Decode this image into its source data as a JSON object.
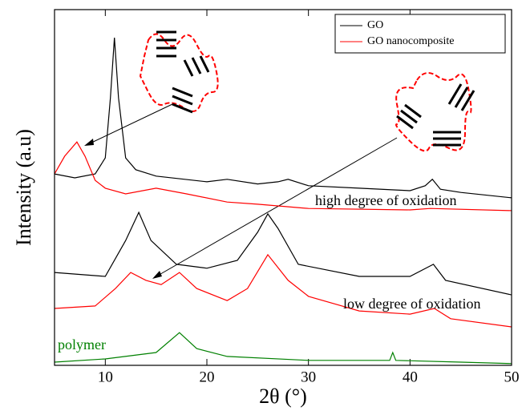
{
  "chart_data": {
    "type": "line",
    "x_label": "2θ (°)",
    "y_label": "Intensity (a.u)",
    "xlim": [
      5,
      50
    ],
    "ylim": [
      0,
      100
    ],
    "xticks": [
      10,
      20,
      30,
      40,
      50
    ],
    "legend_position": "upper right",
    "series": [
      {
        "name": "GO",
        "color": "#000000",
        "x": [
          5,
          7,
          9,
          10,
          10.5,
          10.9,
          11.3,
          12,
          13,
          15,
          20,
          22,
          25,
          27,
          28,
          30,
          35,
          40,
          41.5,
          42.2,
          43,
          45,
          50
        ],
        "values": [
          53.8,
          52.7,
          53.8,
          58.3,
          75.2,
          92.1,
          75.2,
          58.3,
          55.0,
          53.2,
          51.6,
          52.3,
          51.0,
          51.6,
          52.3,
          50.5,
          49.8,
          49.1,
          50.5,
          52.3,
          49.5,
          48.6,
          47.1
        ]
      },
      {
        "name": "GO nanocomposite",
        "color": "#ff0000",
        "x": [
          5,
          6,
          7.2,
          8,
          9,
          10,
          12,
          15,
          18,
          22,
          25,
          30,
          40,
          42,
          50
        ],
        "values": [
          53.8,
          58.8,
          62.8,
          58.8,
          52.0,
          49.8,
          48.2,
          49.8,
          48.2,
          45.9,
          45.3,
          44.1,
          43.7,
          44.1,
          43.5
        ]
      },
      {
        "color": "#000000",
        "x": [
          5,
          10,
          12,
          13.3,
          14.5,
          17,
          20,
          23,
          25,
          26,
          27,
          29,
          35,
          40,
          42.3,
          43.5,
          50
        ],
        "values": [
          26.1,
          25.0,
          35.1,
          43.0,
          35.1,
          28.4,
          27.3,
          29.5,
          37.4,
          42.6,
          38.5,
          28.4,
          25.0,
          25.0,
          28.4,
          23.9,
          19.8
        ]
      },
      {
        "color": "#ff0000",
        "x": [
          5,
          9,
          11,
          12.5,
          14,
          15.5,
          17.3,
          19,
          22,
          24,
          26,
          28,
          30,
          35,
          40,
          42.4,
          44,
          50
        ],
        "values": [
          16.0,
          16.7,
          21.6,
          26.1,
          23.9,
          22.7,
          26.1,
          21.6,
          18.2,
          21.6,
          31.1,
          23.9,
          19.4,
          15.3,
          14.4,
          16.0,
          13.1,
          10.8
        ]
      },
      {
        "color": "#008000",
        "x": [
          5,
          10,
          15,
          17.3,
          19,
          22,
          30,
          38,
          38.3,
          38.6,
          45,
          50
        ],
        "values": [
          0.9,
          1.8,
          3.6,
          9.2,
          4.7,
          2.5,
          1.4,
          1.4,
          3.6,
          1.4,
          0.9,
          0.5
        ]
      }
    ],
    "annotations": [
      {
        "text": "high degree of oxidation",
        "color": "#000000"
      },
      {
        "text": "low degree of oxidation",
        "color": "#000000"
      },
      {
        "text": "polymer",
        "color": "#008000"
      }
    ]
  }
}
